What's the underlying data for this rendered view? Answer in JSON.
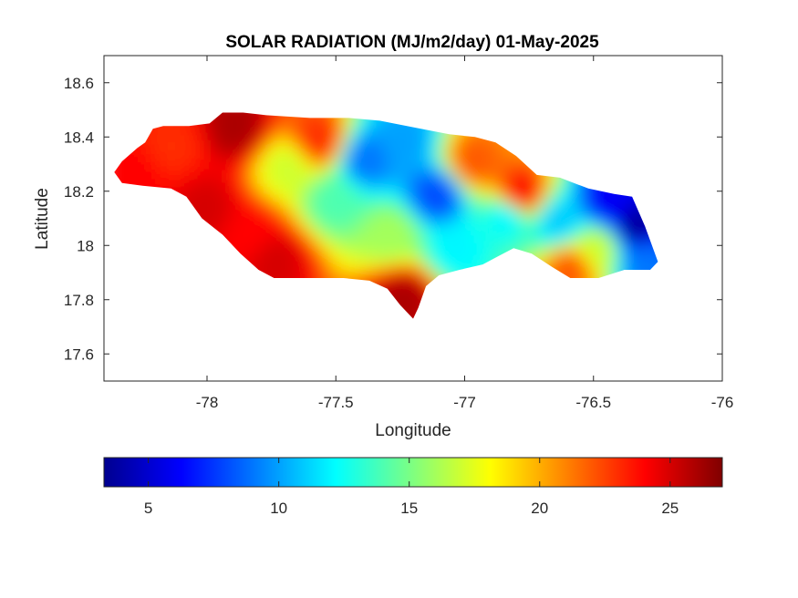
{
  "chart_data": {
    "type": "heatmap",
    "title": "SOLAR RADIATION (MJ/m2/day) 01-May-2025",
    "xlabel": "Longitude",
    "ylabel": "Latitude",
    "xlim": [
      -78.4,
      -76.0
    ],
    "ylim": [
      17.5,
      18.7
    ],
    "xticks": [
      "-78",
      "-77.5",
      "-77",
      "-76.5",
      "-76"
    ],
    "xtick_values": [
      -78,
      -77.5,
      -77,
      -76.5,
      -76
    ],
    "yticks": [
      "18.6",
      "18.4",
      "18.2",
      "18",
      "17.8",
      "17.6"
    ],
    "ytick_values": [
      18.6,
      18.4,
      18.2,
      18.0,
      17.8,
      17.6
    ],
    "grid": false,
    "colormap": "jet",
    "colorbar": {
      "location": "bottom",
      "range": [
        3.3,
        27.0
      ],
      "ticks": [
        "5",
        "10",
        "15",
        "20",
        "25"
      ],
      "tick_values": [
        5,
        10,
        15,
        20,
        25
      ]
    },
    "outline": [
      [
        -78.36,
        18.27
      ],
      [
        -78.33,
        18.31
      ],
      [
        -78.27,
        18.36
      ],
      [
        -78.24,
        18.38
      ],
      [
        -78.21,
        18.43
      ],
      [
        -78.17,
        18.44
      ],
      [
        -78.07,
        18.44
      ],
      [
        -77.99,
        18.45
      ],
      [
        -77.94,
        18.49
      ],
      [
        -77.86,
        18.49
      ],
      [
        -77.77,
        18.48
      ],
      [
        -77.6,
        18.47
      ],
      [
        -77.45,
        18.47
      ],
      [
        -77.33,
        18.46
      ],
      [
        -77.17,
        18.43
      ],
      [
        -77.06,
        18.41
      ],
      [
        -76.96,
        18.4
      ],
      [
        -76.88,
        18.38
      ],
      [
        -76.8,
        18.33
      ],
      [
        -76.72,
        18.26
      ],
      [
        -76.63,
        18.25
      ],
      [
        -76.52,
        18.21
      ],
      [
        -76.42,
        18.19
      ],
      [
        -76.35,
        18.18
      ],
      [
        -76.3,
        18.07
      ],
      [
        -76.25,
        17.94
      ],
      [
        -76.28,
        17.91
      ],
      [
        -76.38,
        17.91
      ],
      [
        -76.48,
        17.88
      ],
      [
        -76.59,
        17.88
      ],
      [
        -76.66,
        17.92
      ],
      [
        -76.74,
        17.97
      ],
      [
        -76.81,
        17.99
      ],
      [
        -76.87,
        17.96
      ],
      [
        -76.93,
        17.93
      ],
      [
        -77.02,
        17.91
      ],
      [
        -77.1,
        17.89
      ],
      [
        -77.15,
        17.85
      ],
      [
        -77.18,
        17.77
      ],
      [
        -77.2,
        17.73
      ],
      [
        -77.25,
        17.78
      ],
      [
        -77.3,
        17.84
      ],
      [
        -77.37,
        17.87
      ],
      [
        -77.47,
        17.88
      ],
      [
        -77.57,
        17.88
      ],
      [
        -77.68,
        17.88
      ],
      [
        -77.74,
        17.88
      ],
      [
        -77.8,
        17.91
      ],
      [
        -77.87,
        17.97
      ],
      [
        -77.94,
        18.04
      ],
      [
        -78.02,
        18.1
      ],
      [
        -78.08,
        18.18
      ],
      [
        -78.14,
        18.21
      ],
      [
        -78.25,
        18.22
      ],
      [
        -78.33,
        18.23
      ]
    ],
    "sample_values": [
      {
        "lon": -78.3,
        "lat": 18.28,
        "value": 24
      },
      {
        "lon": -78.15,
        "lat": 18.38,
        "value": 23
      },
      {
        "lon": -78.02,
        "lat": 18.15,
        "value": 25
      },
      {
        "lon": -77.9,
        "lat": 18.45,
        "value": 26
      },
      {
        "lon": -77.85,
        "lat": 18.05,
        "value": 24
      },
      {
        "lon": -77.75,
        "lat": 17.96,
        "value": 25
      },
      {
        "lon": -77.7,
        "lat": 18.3,
        "value": 17
      },
      {
        "lon": -77.58,
        "lat": 18.4,
        "value": 23
      },
      {
        "lon": -77.52,
        "lat": 18.18,
        "value": 14
      },
      {
        "lon": -77.4,
        "lat": 18.33,
        "value": 9
      },
      {
        "lon": -77.3,
        "lat": 18.05,
        "value": 16
      },
      {
        "lon": -77.25,
        "lat": 17.82,
        "value": 26
      },
      {
        "lon": -77.25,
        "lat": 18.4,
        "value": 10
      },
      {
        "lon": -77.12,
        "lat": 18.2,
        "value": 8
      },
      {
        "lon": -77.05,
        "lat": 18.0,
        "value": 12
      },
      {
        "lon": -76.98,
        "lat": 18.32,
        "value": 22
      },
      {
        "lon": -76.85,
        "lat": 18.12,
        "value": 12
      },
      {
        "lon": -76.8,
        "lat": 18.2,
        "value": 24
      },
      {
        "lon": -76.65,
        "lat": 18.1,
        "value": 11
      },
      {
        "lon": -76.6,
        "lat": 17.93,
        "value": 22
      },
      {
        "lon": -76.5,
        "lat": 18.0,
        "value": 17
      },
      {
        "lon": -76.45,
        "lat": 18.17,
        "value": 6
      },
      {
        "lon": -76.35,
        "lat": 18.08,
        "value": 4
      },
      {
        "lon": -76.32,
        "lat": 17.96,
        "value": 9
      }
    ]
  }
}
